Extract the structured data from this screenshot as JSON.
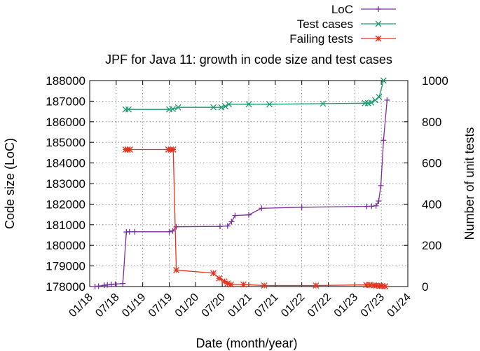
{
  "chart_data": {
    "type": "line",
    "title": "JPF for Java 11: growth in code size and test cases",
    "xlabel": "Date (month/year)",
    "ylabel": "Code size (LoC)",
    "y2label": "Number of unit tests",
    "xlim": [
      0,
      72
    ],
    "ylim": [
      178000,
      188000
    ],
    "y2lim": [
      0,
      1000
    ],
    "x_ticks": [
      {
        "x": 0,
        "label": "01/18"
      },
      {
        "x": 6,
        "label": "07/18"
      },
      {
        "x": 12,
        "label": "01/19"
      },
      {
        "x": 18,
        "label": "07/19"
      },
      {
        "x": 24,
        "label": "01/20"
      },
      {
        "x": 30,
        "label": "07/20"
      },
      {
        "x": 36,
        "label": "01/21"
      },
      {
        "x": 42,
        "label": "07/21"
      },
      {
        "x": 48,
        "label": "01/22"
      },
      {
        "x": 54,
        "label": "07/22"
      },
      {
        "x": 60,
        "label": "01/23"
      },
      {
        "x": 66,
        "label": "07/23"
      },
      {
        "x": 72,
        "label": "01/24"
      }
    ],
    "y_ticks": [
      "178000",
      "179000",
      "180000",
      "181000",
      "182000",
      "183000",
      "184000",
      "185000",
      "186000",
      "187000",
      "188000"
    ],
    "y2_ticks": [
      "0",
      "200",
      "400",
      "600",
      "800",
      "1000"
    ],
    "grid": true,
    "legend_position": "top-right",
    "series": [
      {
        "name": "LoC",
        "axis": "left",
        "color": "#7b2f9e",
        "marker": "plus",
        "x": [
          1.2,
          2.0,
          3.3,
          4.0,
          4.9,
          5.8,
          7.5,
          8.3,
          9.0,
          10.2,
          18.0,
          18.8,
          19.6,
          29.5,
          31.2,
          32.1,
          32.9,
          36.0,
          38.9,
          48.0,
          62.7,
          63.8,
          64.8,
          65.4,
          65.9,
          66.5,
          67.3
        ],
        "values": [
          178000,
          178020,
          178060,
          178080,
          178100,
          178120,
          178150,
          180650,
          180660,
          180660,
          180660,
          180700,
          180900,
          180920,
          180940,
          181150,
          181450,
          181480,
          181800,
          181850,
          181890,
          181900,
          181920,
          182150,
          182900,
          185100,
          187050
        ]
      },
      {
        "name": "Test cases",
        "axis": "right",
        "color": "#1a9a6c",
        "marker": "x",
        "x": [
          8.1,
          8.8,
          18.0,
          18.8,
          20.0,
          28.0,
          29.8,
          30.7,
          31.5,
          36.0,
          40.7,
          52.8,
          62.3,
          63.0,
          63.7,
          64.6,
          65.5,
          66.5
        ],
        "values": [
          860,
          860,
          860,
          862,
          870,
          870,
          870,
          875,
          885,
          885,
          885,
          888,
          890,
          890,
          893,
          905,
          920,
          1000
        ]
      },
      {
        "name": "Failing tests",
        "axis": "right",
        "color": "#e8311c",
        "marker": "star",
        "x": [
          8.1,
          8.6,
          9.1,
          17.8,
          18.4,
          18.9,
          19.6,
          28.0,
          29.3,
          30.5,
          31.2,
          32.0,
          34.8,
          39.5,
          51.2,
          62.6,
          63.4,
          64.3,
          64.9,
          65.6,
          66.2,
          66.9
        ],
        "values": [
          665,
          665,
          665,
          665,
          665,
          665,
          80,
          65,
          40,
          25,
          15,
          10,
          10,
          5,
          5,
          8,
          8,
          6,
          5,
          3,
          2,
          1
        ]
      }
    ]
  }
}
